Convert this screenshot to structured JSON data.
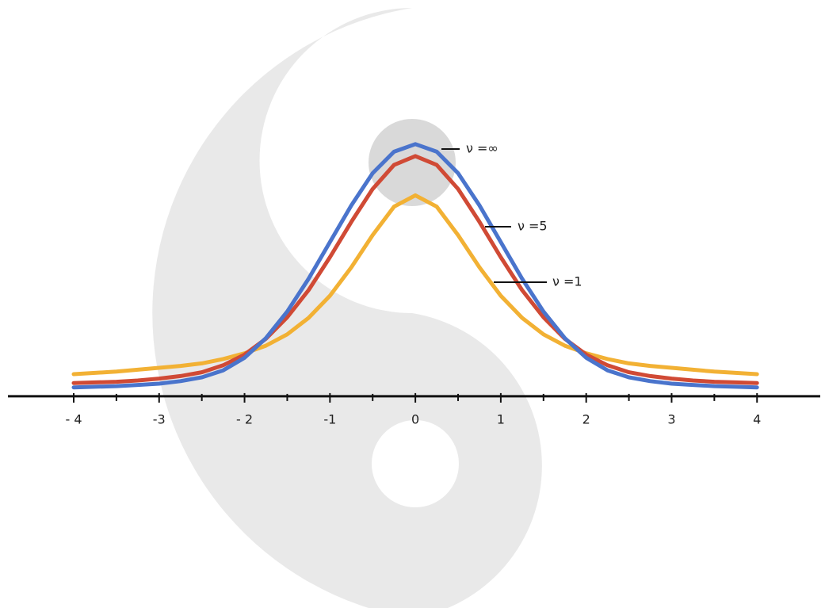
{
  "chart_data": {
    "type": "line",
    "x": [
      -4,
      -3.75,
      -3.5,
      -3.25,
      -3,
      -2.75,
      -2.5,
      -2.25,
      -2,
      -1.75,
      -1.5,
      -1.25,
      -1,
      -0.75,
      -0.5,
      -0.25,
      0,
      0.25,
      0.5,
      0.75,
      1,
      1.25,
      1.5,
      1.75,
      2,
      2.25,
      2.5,
      2.75,
      3,
      3.25,
      3.5,
      3.75,
      4
    ],
    "series": [
      {
        "name": "ν =∞",
        "color": "#4a74cc",
        "values": [
          0.014,
          0.015,
          0.016,
          0.018,
          0.02,
          0.024,
          0.03,
          0.041,
          0.061,
          0.092,
          0.134,
          0.186,
          0.244,
          0.302,
          0.353,
          0.387,
          0.399,
          0.387,
          0.353,
          0.302,
          0.244,
          0.186,
          0.134,
          0.092,
          0.061,
          0.041,
          0.03,
          0.024,
          0.02,
          0.018,
          0.016,
          0.015,
          0.014
        ]
      },
      {
        "name": "ν =5",
        "color": "#d04a35",
        "values": [
          0.021,
          0.022,
          0.023,
          0.025,
          0.028,
          0.032,
          0.038,
          0.049,
          0.066,
          0.091,
          0.125,
          0.168,
          0.22,
          0.276,
          0.328,
          0.366,
          0.38,
          0.366,
          0.328,
          0.276,
          0.22,
          0.168,
          0.125,
          0.091,
          0.066,
          0.049,
          0.038,
          0.032,
          0.028,
          0.025,
          0.023,
          0.022,
          0.021
        ]
      },
      {
        "name": "ν =1",
        "color": "#f2b134",
        "values": [
          0.035,
          0.037,
          0.039,
          0.042,
          0.045,
          0.048,
          0.052,
          0.059,
          0.068,
          0.08,
          0.098,
          0.124,
          0.159,
          0.204,
          0.255,
          0.3,
          0.318,
          0.3,
          0.255,
          0.204,
          0.159,
          0.124,
          0.098,
          0.08,
          0.068,
          0.059,
          0.052,
          0.048,
          0.045,
          0.042,
          0.039,
          0.037,
          0.035
        ]
      }
    ],
    "xlim": [
      -4.77,
      4.74
    ],
    "ylim": [
      -0.335,
      0.627
    ],
    "xticks": [
      {
        "value": -4,
        "label": "- 4"
      },
      -3,
      {
        "value": -2,
        "label": "- 2"
      },
      -1,
      0,
      1,
      2,
      3,
      4
    ],
    "minor_xticks": [
      -3.5,
      -2.5,
      -1.5,
      -0.5,
      0.5,
      1.5,
      2.5,
      3.5
    ]
  }
}
